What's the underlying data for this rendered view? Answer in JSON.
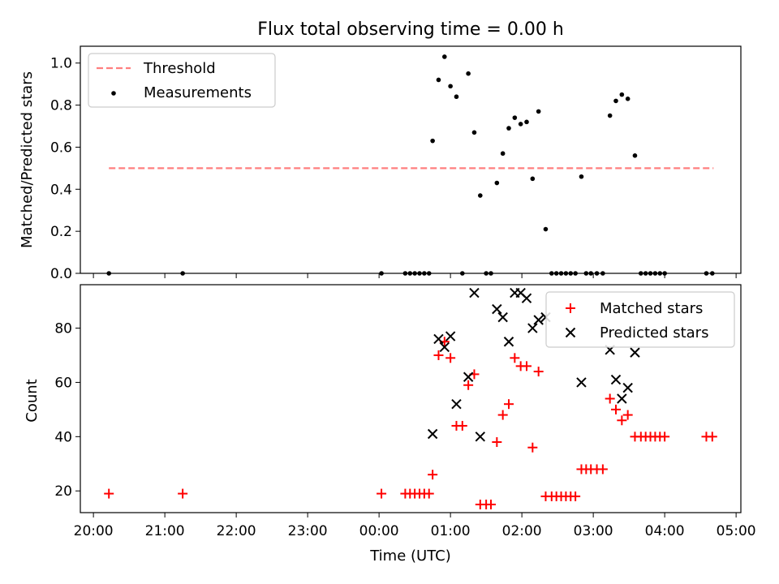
{
  "chart_data": [
    {
      "type": "scatter",
      "title": "Flux total observing time = 0.00 h",
      "xlabel": "",
      "ylabel": "Matched/Predicted stars",
      "ylim": [
        0,
        1.08
      ],
      "xlim": [
        "19:49",
        "05:04"
      ],
      "yticks": [
        "0.0",
        "0.2",
        "0.4",
        "0.6",
        "0.8",
        "1.0"
      ],
      "legend_placement": "upper-left",
      "threshold": {
        "name": "Threshold",
        "value": 0.5,
        "x_range": [
          "20:13",
          "04:41"
        ],
        "color": "#ff7f7f",
        "style": "dashed"
      },
      "series": [
        {
          "name": "Measurements",
          "color": "#000000",
          "points": [
            [
              "20:13",
              0.0
            ],
            [
              "21:15",
              0.0
            ],
            [
              "00:02",
              0.0
            ],
            [
              "00:22",
              0.0
            ],
            [
              "00:26",
              0.0
            ],
            [
              "00:30",
              0.0
            ],
            [
              "00:34",
              0.0
            ],
            [
              "00:38",
              0.0
            ],
            [
              "00:42",
              0.0
            ],
            [
              "00:45",
              0.63
            ],
            [
              "00:50",
              0.92
            ],
            [
              "00:55",
              1.03
            ],
            [
              "01:00",
              0.89
            ],
            [
              "01:05",
              0.84
            ],
            [
              "01:10",
              0.0
            ],
            [
              "01:15",
              0.95
            ],
            [
              "01:20",
              0.67
            ],
            [
              "01:25",
              0.37
            ],
            [
              "01:30",
              0.0
            ],
            [
              "01:34",
              0.0
            ],
            [
              "01:39",
              0.43
            ],
            [
              "01:44",
              0.57
            ],
            [
              "01:49",
              0.69
            ],
            [
              "01:54",
              0.74
            ],
            [
              "01:59",
              0.71
            ],
            [
              "02:04",
              0.72
            ],
            [
              "02:09",
              0.45
            ],
            [
              "02:14",
              0.77
            ],
            [
              "02:20",
              0.21
            ],
            [
              "02:25",
              0.0
            ],
            [
              "02:29",
              0.0
            ],
            [
              "02:33",
              0.0
            ],
            [
              "02:37",
              0.0
            ],
            [
              "02:41",
              0.0
            ],
            [
              "02:45",
              0.0
            ],
            [
              "02:50",
              0.46
            ],
            [
              "02:54",
              0.0
            ],
            [
              "02:58",
              0.0
            ],
            [
              "03:03",
              0.0
            ],
            [
              "03:08",
              0.0
            ],
            [
              "03:14",
              0.75
            ],
            [
              "03:19",
              0.82
            ],
            [
              "03:24",
              0.85
            ],
            [
              "03:29",
              0.83
            ],
            [
              "03:35",
              0.56
            ],
            [
              "03:40",
              0.0
            ],
            [
              "03:44",
              0.0
            ],
            [
              "03:48",
              0.0
            ],
            [
              "03:52",
              0.0
            ],
            [
              "03:56",
              0.0
            ],
            [
              "04:00",
              0.0
            ],
            [
              "04:35",
              0.0
            ],
            [
              "04:40",
              0.0
            ]
          ]
        }
      ]
    },
    {
      "type": "scatter",
      "title": "",
      "xlabel": "Time (UTC)",
      "ylabel": "Count",
      "ylim": [
        12,
        96
      ],
      "xlim": [
        "19:49",
        "05:04"
      ],
      "yticks": [
        "20",
        "40",
        "60",
        "80"
      ],
      "xticks": [
        "20:00",
        "21:00",
        "22:00",
        "23:00",
        "00:00",
        "01:00",
        "02:00",
        "03:00",
        "04:00",
        "05:00"
      ],
      "legend_placement": "upper-right",
      "series": [
        {
          "name": "Matched stars",
          "marker": "+",
          "color": "#ff0000",
          "points": [
            [
              "20:13",
              19
            ],
            [
              "21:15",
              19
            ],
            [
              "00:02",
              19
            ],
            [
              "00:22",
              19
            ],
            [
              "00:26",
              19
            ],
            [
              "00:30",
              19
            ],
            [
              "00:34",
              19
            ],
            [
              "00:38",
              19
            ],
            [
              "00:42",
              19
            ],
            [
              "00:45",
              26
            ],
            [
              "00:50",
              70
            ],
            [
              "00:55",
              75
            ],
            [
              "01:00",
              69
            ],
            [
              "01:05",
              44
            ],
            [
              "01:10",
              44
            ],
            [
              "01:15",
              59
            ],
            [
              "01:20",
              63
            ],
            [
              "01:25",
              15
            ],
            [
              "01:30",
              15
            ],
            [
              "01:34",
              15
            ],
            [
              "01:39",
              38
            ],
            [
              "01:44",
              48
            ],
            [
              "01:49",
              52
            ],
            [
              "01:54",
              69
            ],
            [
              "01:59",
              66
            ],
            [
              "02:04",
              66
            ],
            [
              "02:09",
              36
            ],
            [
              "02:14",
              64
            ],
            [
              "02:20",
              18
            ],
            [
              "02:25",
              18
            ],
            [
              "02:29",
              18
            ],
            [
              "02:33",
              18
            ],
            [
              "02:37",
              18
            ],
            [
              "02:41",
              18
            ],
            [
              "02:45",
              18
            ],
            [
              "02:50",
              28
            ],
            [
              "02:54",
              28
            ],
            [
              "02:58",
              28
            ],
            [
              "03:03",
              28
            ],
            [
              "03:08",
              28
            ],
            [
              "03:14",
              54
            ],
            [
              "03:19",
              50
            ],
            [
              "03:24",
              46
            ],
            [
              "03:29",
              48
            ],
            [
              "03:35",
              40
            ],
            [
              "03:40",
              40
            ],
            [
              "03:44",
              40
            ],
            [
              "03:48",
              40
            ],
            [
              "03:52",
              40
            ],
            [
              "03:56",
              40
            ],
            [
              "04:00",
              40
            ],
            [
              "04:35",
              40
            ],
            [
              "04:40",
              40
            ]
          ]
        },
        {
          "name": "Predicted stars",
          "marker": "x",
          "color": "#000000",
          "points": [
            [
              "00:45",
              41
            ],
            [
              "00:50",
              76
            ],
            [
              "00:55",
              73
            ],
            [
              "01:00",
              77
            ],
            [
              "01:05",
              52
            ],
            [
              "01:15",
              62
            ],
            [
              "01:20",
              93
            ],
            [
              "01:25",
              40
            ],
            [
              "01:39",
              87
            ],
            [
              "01:44",
              84
            ],
            [
              "01:49",
              75
            ],
            [
              "01:54",
              93
            ],
            [
              "01:59",
              93
            ],
            [
              "02:04",
              91
            ],
            [
              "02:09",
              80
            ],
            [
              "02:14",
              83
            ],
            [
              "02:20",
              84
            ],
            [
              "02:50",
              60
            ],
            [
              "03:14",
              72
            ],
            [
              "03:19",
              61
            ],
            [
              "03:24",
              54
            ],
            [
              "03:29",
              58
            ],
            [
              "03:35",
              71
            ]
          ]
        }
      ]
    }
  ]
}
